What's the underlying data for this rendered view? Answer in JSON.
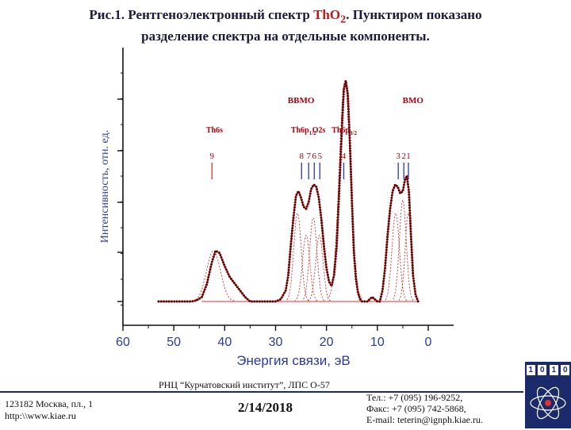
{
  "slide": {
    "title_line1_prefix": "Рис.1. Рентгеноэлектронный спектр ",
    "title_compound": "ThO",
    "title_subscript": "2",
    "title_line1_suffix": ". Пунктиром показано",
    "title_line2": "разделение спектра на отдельные компоненты."
  },
  "footer": {
    "institute": "РНЦ “Курчатовский институт”,   ЛПС О-57",
    "address_line1": "123182 Москва, пл., 1",
    "address_line2": "http:\\\\www.kiae.ru",
    "date": "2/14/2018",
    "phone": "Тел.:   +7 (095) 196-9252,",
    "fax": "Факс:  +7 (095) 742-5868,",
    "email": "E-mail: teterin@ignph.kiae.ru.",
    "logo_digits": [
      "1",
      "0",
      "1",
      "0"
    ]
  },
  "chart_data": {
    "type": "line",
    "xlabel": "Энергия связи, эВ",
    "ylabel": "Интенсивность, отн. ед.",
    "xlim": [
      60,
      0
    ],
    "x_reversed": true,
    "xticks": [
      60,
      50,
      40,
      30,
      20,
      10,
      0
    ],
    "ylim": [
      0,
      1
    ],
    "y_tick_labels_shown": false,
    "grid": false,
    "colors": {
      "spectrum": "#6b0000",
      "components": "#e03030",
      "annotations": "#b00010",
      "baseline": "#e03030"
    },
    "region_labels": [
      {
        "text": "ВВМО",
        "x": 25
      },
      {
        "text": "ВМО",
        "x": 3
      }
    ],
    "level_labels": [
      {
        "main": "Th6s",
        "sub": "",
        "x": 42
      },
      {
        "main": "Th6p",
        "sub": "1/2",
        "x": 24.5
      },
      {
        "main": "O2s",
        "sub": "",
        "x": 21.5
      },
      {
        "main": "Th6p",
        "sub": "3/2",
        "x": 16.5
      }
    ],
    "component_markers": [
      {
        "label": "9",
        "x": 42.5
      },
      {
        "label": "8",
        "x": 24.9
      },
      {
        "label": "7",
        "x": 23.5
      },
      {
        "label": "6",
        "x": 22.4
      },
      {
        "label": "5",
        "x": 21.3
      },
      {
        "label": "4",
        "x": 16.6
      },
      {
        "label": "3",
        "x": 5.9
      },
      {
        "label": "2",
        "x": 4.8
      },
      {
        "label": "1",
        "x": 3.9
      }
    ],
    "series": [
      {
        "style": "dotted",
        "x": [
          53.0,
          46.5,
          45.5,
          44.5,
          43.5,
          42.5,
          41.8,
          41.0,
          40.0,
          39.0,
          38.0,
          37.0,
          36.0,
          35.0,
          33.0,
          30.0,
          29.0,
          28.0,
          27.5,
          27.0,
          26.5,
          26.0,
          25.5,
          25.0,
          24.5,
          24.0,
          23.5,
          23.0,
          22.5,
          22.0,
          21.5,
          21.0,
          20.5,
          20.0,
          19.5,
          19.0,
          18.5,
          18.0,
          17.5,
          17.0,
          16.6,
          16.2,
          15.8,
          15.4,
          15.0,
          14.6,
          14.2,
          13.8,
          13.4,
          13.0,
          12.5,
          12.0,
          11.0,
          10.0,
          9.5,
          9.0,
          8.5,
          8.0,
          7.5,
          7.0,
          6.5,
          6.0,
          5.5,
          5.0,
          4.6,
          4.2,
          3.8,
          3.4,
          3.0,
          2.5,
          2.0
        ],
        "values": [
          0.0,
          0.0,
          0.005,
          0.02,
          0.08,
          0.18,
          0.23,
          0.22,
          0.16,
          0.11,
          0.08,
          0.05,
          0.02,
          0.0,
          0.0,
          0.0,
          0.01,
          0.05,
          0.12,
          0.26,
          0.38,
          0.48,
          0.5,
          0.47,
          0.43,
          0.42,
          0.45,
          0.51,
          0.53,
          0.52,
          0.47,
          0.37,
          0.25,
          0.15,
          0.09,
          0.07,
          0.12,
          0.25,
          0.5,
          0.77,
          0.96,
          1.0,
          0.94,
          0.72,
          0.45,
          0.22,
          0.1,
          0.04,
          0.01,
          0.0,
          0.0,
          0.0,
          0.02,
          0.0,
          0.0,
          0.05,
          0.15,
          0.3,
          0.42,
          0.5,
          0.53,
          0.52,
          0.49,
          0.5,
          0.55,
          0.57,
          0.5,
          0.3,
          0.12,
          0.03,
          0.0
        ]
      },
      {
        "style": "dashed",
        "component": 9,
        "center": 42.2,
        "height": 0.23,
        "fwhm": 3.2
      },
      {
        "style": "dashed",
        "component": 8,
        "center": 25.7,
        "height": 0.4,
        "fwhm": 1.7
      },
      {
        "style": "dashed",
        "component": 7,
        "center": 24.0,
        "height": 0.3,
        "fwhm": 1.7
      },
      {
        "style": "dashed",
        "component": 6,
        "center": 22.6,
        "height": 0.38,
        "fwhm": 1.7
      },
      {
        "style": "dashed",
        "component": 5,
        "center": 21.4,
        "height": 0.3,
        "fwhm": 1.7
      },
      {
        "style": "dashed",
        "component": 4,
        "center": 16.4,
        "height": 1.0,
        "fwhm": 2.6
      },
      {
        "style": "dashed",
        "component": 3,
        "center": 6.4,
        "height": 0.4,
        "fwhm": 1.7
      },
      {
        "style": "dashed",
        "component": 2,
        "center": 5.0,
        "height": 0.46,
        "fwhm": 1.6
      },
      {
        "style": "dashed",
        "component": 1,
        "center": 3.9,
        "height": 0.4,
        "fwhm": 1.5
      }
    ]
  }
}
